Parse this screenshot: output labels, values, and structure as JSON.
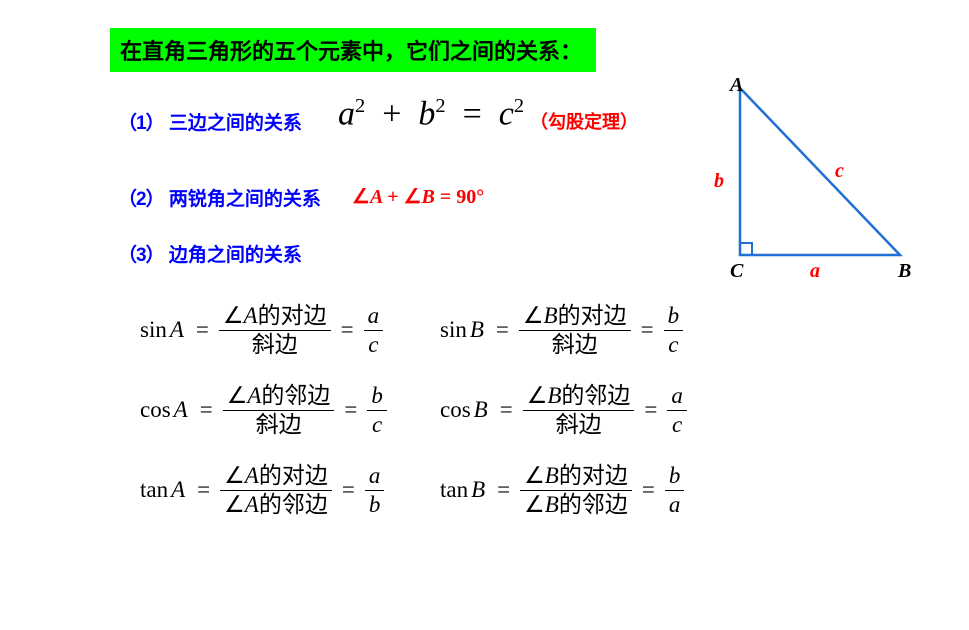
{
  "header": {
    "text": "在直角三角形的五个元素中，它们之间的关系：",
    "bg_color": "#00ff00",
    "text_color": "#000000",
    "fontsize": 22
  },
  "rules": {
    "r1_num": "（1）",
    "r1_label": "三边之间的关系",
    "r1_eq_a": "a",
    "r1_eq_b": "b",
    "r1_eq_c": "c",
    "r1_eq_exp": "2",
    "r1_note": "（勾股定理）",
    "r2_num": "（2）",
    "r2_label": "两锐角之间的关系",
    "r2_eq": "∠A + ∠B = 90°",
    "r3_num": "（3）",
    "r3_label": "边角之间的关系"
  },
  "triangle": {
    "A": "A",
    "B": "B",
    "C": "C",
    "a": "a",
    "b": "b",
    "c": "c",
    "stroke": "#1f6fd4",
    "stroke_width": 2.5,
    "label_color_vertex": "#000000",
    "label_color_side": "#ff0000",
    "points": {
      "A": [
        40,
        0
      ],
      "C": [
        40,
        175
      ],
      "B": [
        200,
        175
      ]
    }
  },
  "formulas": {
    "fns": {
      "sin": "sin",
      "cos": "cos",
      "tan": "tan"
    },
    "vars": {
      "A": "A",
      "B": "B"
    },
    "eq": "=",
    "angle": "∠",
    "words": {
      "opp": "的对边",
      "adj": "的邻边",
      "hyp": "斜边"
    },
    "letters": {
      "a": "a",
      "b": "b",
      "c": "c"
    },
    "layout": {
      "colA_width": 300,
      "colB_width": 320,
      "row_gap": 24,
      "fontsize": 23
    },
    "rows": [
      {
        "fn": "sin",
        "Anum": "opp",
        "Aden": "hyp",
        "Atop": "a",
        "Abot": "c",
        "Bnum": "opp",
        "Bden": "hyp",
        "Btop": "b",
        "Bbot": "c"
      },
      {
        "fn": "cos",
        "Anum": "adj",
        "Aden": "hyp",
        "Atop": "b",
        "Abot": "c",
        "Bnum": "adj",
        "Bden": "hyp",
        "Btop": "a",
        "Bbot": "c"
      },
      {
        "fn": "tan",
        "Anum": "opp",
        "Aden": "adj",
        "Atop": "a",
        "Abot": "b",
        "Bnum": "opp",
        "Bden": "adj",
        "Btop": "b",
        "Bbot": "a"
      }
    ]
  },
  "colors": {
    "blue": "#0000ff",
    "red": "#ff0000",
    "black": "#000000",
    "background": "#ffffff"
  }
}
